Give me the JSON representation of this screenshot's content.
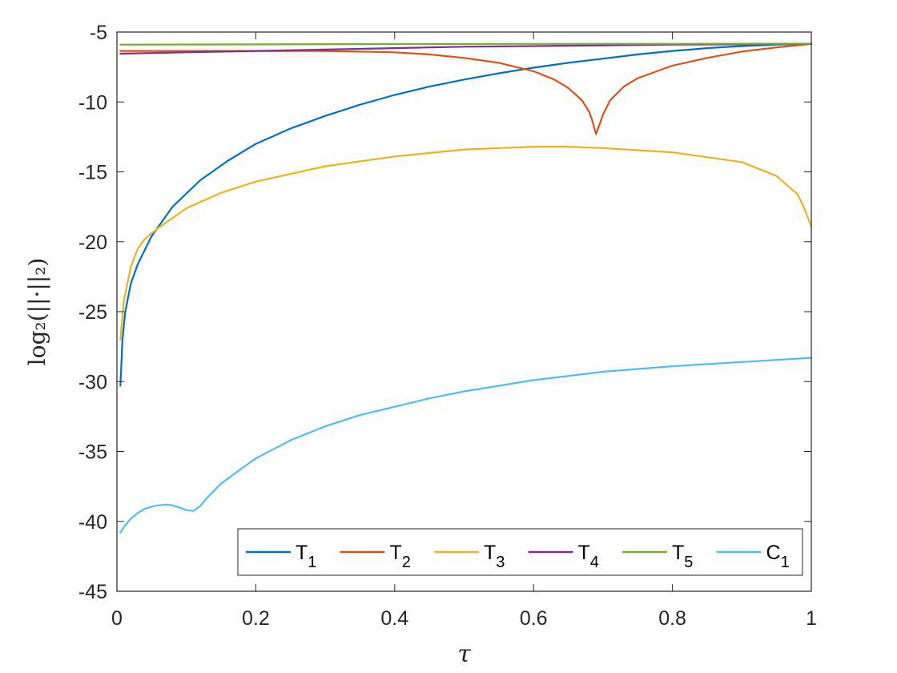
{
  "chart_data": {
    "type": "line",
    "title": "",
    "xlabel": "τ",
    "ylabel": "log₂(||·||₂)",
    "xlim": [
      0,
      1
    ],
    "ylim": [
      -45,
      -5
    ],
    "xticks": [
      0,
      0.2,
      0.4,
      0.6,
      0.8,
      1
    ],
    "xtick_labels": [
      "0",
      "0.2",
      "0.4",
      "0.6",
      "0.8",
      "1"
    ],
    "yticks": [
      -5,
      -10,
      -15,
      -20,
      -25,
      -30,
      -35,
      -40,
      -45
    ],
    "ytick_labels": [
      "-5",
      "-10",
      "-15",
      "-20",
      "-25",
      "-30",
      "-35",
      "-40",
      "-45"
    ],
    "grid": false,
    "legend_position": "bottom, horizontal",
    "series": [
      {
        "name": "T",
        "sub": "1",
        "color": "#0072BD",
        "x": [
          0.005,
          0.008,
          0.012,
          0.02,
          0.03,
          0.05,
          0.08,
          0.12,
          0.16,
          0.2,
          0.25,
          0.3,
          0.35,
          0.4,
          0.45,
          0.5,
          0.55,
          0.6,
          0.65,
          0.7,
          0.75,
          0.8,
          0.85,
          0.9,
          0.95,
          1.0
        ],
        "y": [
          -30.3,
          -27.0,
          -25.0,
          -23.0,
          -21.6,
          -19.6,
          -17.5,
          -15.6,
          -14.2,
          -13.0,
          -11.9,
          -11.0,
          -10.2,
          -9.5,
          -8.9,
          -8.4,
          -7.95,
          -7.55,
          -7.2,
          -6.9,
          -6.6,
          -6.35,
          -6.15,
          -6.0,
          -5.9,
          -5.85
        ]
      },
      {
        "name": "T",
        "sub": "2",
        "color": "#D95319",
        "x": [
          0.005,
          0.1,
          0.2,
          0.3,
          0.35,
          0.4,
          0.45,
          0.5,
          0.55,
          0.6,
          0.63,
          0.65,
          0.67,
          0.68,
          0.685,
          0.69,
          0.695,
          0.7,
          0.71,
          0.73,
          0.75,
          0.8,
          0.85,
          0.9,
          0.95,
          1.0
        ],
        "y": [
          -6.35,
          -6.35,
          -6.35,
          -6.35,
          -6.4,
          -6.45,
          -6.6,
          -6.85,
          -7.2,
          -7.8,
          -8.4,
          -9.0,
          -9.9,
          -10.7,
          -11.4,
          -12.3,
          -11.6,
          -10.9,
          -9.9,
          -8.9,
          -8.3,
          -7.4,
          -6.85,
          -6.4,
          -6.1,
          -5.85
        ]
      },
      {
        "name": "T",
        "sub": "3",
        "color": "#EDB120",
        "x": [
          0.005,
          0.01,
          0.02,
          0.03,
          0.04,
          0.06,
          0.08,
          0.1,
          0.15,
          0.2,
          0.3,
          0.4,
          0.5,
          0.6,
          0.65,
          0.7,
          0.8,
          0.9,
          0.95,
          0.98,
          0.99,
          1.0
        ],
        "y": [
          -27.0,
          -24.2,
          -21.8,
          -20.5,
          -19.8,
          -19.0,
          -18.3,
          -17.6,
          -16.5,
          -15.7,
          -14.6,
          -13.9,
          -13.4,
          -13.2,
          -13.2,
          -13.3,
          -13.6,
          -14.3,
          -15.3,
          -16.6,
          -17.6,
          -18.9
        ]
      },
      {
        "name": "T",
        "sub": "4",
        "color": "#7E2F8E",
        "x": [
          0.005,
          0.1,
          0.2,
          0.3,
          0.4,
          0.5,
          0.6,
          0.7,
          0.8,
          0.9,
          1.0
        ],
        "y": [
          -6.55,
          -6.45,
          -6.35,
          -6.25,
          -6.15,
          -6.05,
          -6.0,
          -5.95,
          -5.9,
          -5.88,
          -5.85
        ]
      },
      {
        "name": "T",
        "sub": "5",
        "color": "#77AC30",
        "x": [
          0.005,
          0.2,
          0.4,
          0.6,
          0.8,
          1.0
        ],
        "y": [
          -5.9,
          -5.88,
          -5.86,
          -5.85,
          -5.84,
          -5.83
        ]
      },
      {
        "name": "C",
        "sub": "1",
        "color": "#4DBEEE",
        "x": [
          0.005,
          0.01,
          0.02,
          0.03,
          0.04,
          0.05,
          0.06,
          0.07,
          0.08,
          0.09,
          0.1,
          0.11,
          0.12,
          0.13,
          0.15,
          0.18,
          0.2,
          0.25,
          0.3,
          0.35,
          0.4,
          0.45,
          0.5,
          0.6,
          0.7,
          0.8,
          0.9,
          1.0
        ],
        "y": [
          -40.8,
          -40.4,
          -39.8,
          -39.4,
          -39.1,
          -38.95,
          -38.85,
          -38.8,
          -38.85,
          -39.0,
          -39.2,
          -39.25,
          -38.9,
          -38.3,
          -37.3,
          -36.2,
          -35.5,
          -34.2,
          -33.2,
          -32.4,
          -31.8,
          -31.2,
          -30.7,
          -29.9,
          -29.3,
          -28.9,
          -28.6,
          -28.3
        ]
      }
    ]
  }
}
